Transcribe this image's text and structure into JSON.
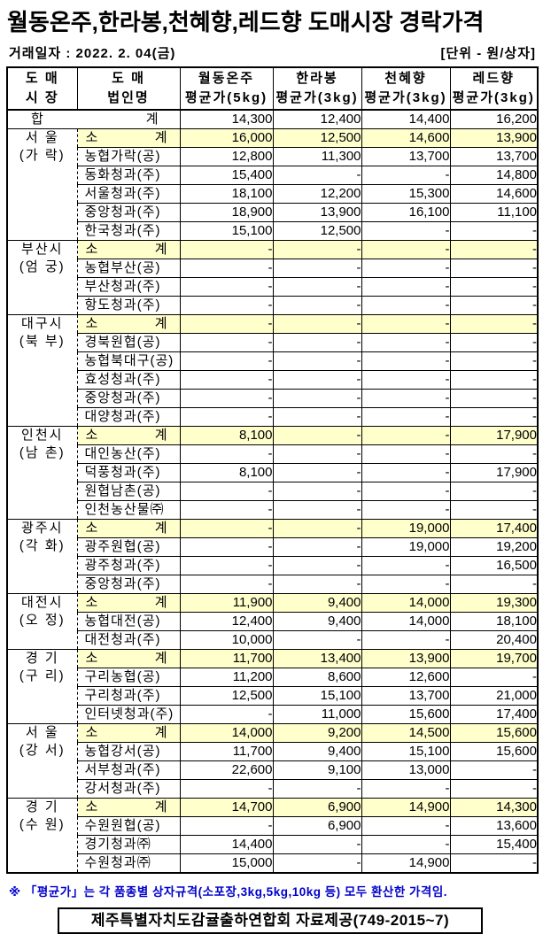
{
  "title": "월동온주,한라봉,천혜향,레드향 도매시장 경락가격",
  "meta": {
    "trade_date": "거래일자 : 2022. 2. 04(금)",
    "unit": "[단위 - 원/상자]"
  },
  "colors": {
    "highlight": "#FFFFCC",
    "footnote_blue": "#0000CC"
  },
  "table": {
    "headers": [
      {
        "line1": "도  매",
        "line2": "시  장"
      },
      {
        "line1": "도  매",
        "line2": "법인명"
      },
      {
        "line1": "월동온주",
        "line2": "평균가(5kg)"
      },
      {
        "line1": "한라봉",
        "line2": "평균가(3kg)"
      },
      {
        "line1": "천혜향",
        "line2": "평균가(3kg)"
      },
      {
        "line1": "레드향",
        "line2": "평균가(3kg)"
      }
    ],
    "total_row": {
      "label_left": "합",
      "label_right": "계",
      "values": [
        "14,300",
        "12,400",
        "14,400",
        "16,200"
      ]
    },
    "sections": [
      {
        "market_line1": "서  울",
        "market_line2": "(가  락)",
        "rows": [
          {
            "sub": true,
            "name_l": "소",
            "name_r": "계",
            "values": [
              "16,000",
              "12,500",
              "14,600",
              "13,900"
            ]
          },
          {
            "name": "농협가락(공)",
            "values": [
              "12,800",
              "11,300",
              "13,700",
              "13,700"
            ]
          },
          {
            "name": "동화청과(주)",
            "values": [
              "15,400",
              "-",
              "-",
              "14,800"
            ]
          },
          {
            "name": "서울청과(주)",
            "values": [
              "18,100",
              "12,200",
              "15,300",
              "14,600"
            ]
          },
          {
            "name": "중앙청과(주)",
            "values": [
              "18,900",
              "13,900",
              "16,100",
              "11,100"
            ]
          },
          {
            "name": "한국청과(주)",
            "values": [
              "15,100",
              "12,500",
              "-",
              "-"
            ]
          }
        ]
      },
      {
        "market_line1": "부산시",
        "market_line2": "(엄  궁)",
        "rows": [
          {
            "sub": true,
            "name_l": "소",
            "name_r": "계",
            "values": [
              "-",
              "-",
              "-",
              "-"
            ]
          },
          {
            "name": "농협부산(공)",
            "values": [
              "-",
              "-",
              "-",
              "-"
            ]
          },
          {
            "name": "부산청과(주)",
            "values": [
              "-",
              "-",
              "-",
              "-"
            ]
          },
          {
            "name": "항도청과(주)",
            "values": [
              "-",
              "-",
              "-",
              "-"
            ]
          }
        ]
      },
      {
        "market_line1": "대구시",
        "market_line2": "(북  부)",
        "rows": [
          {
            "sub": true,
            "name_l": "소",
            "name_r": "계",
            "values": [
              "-",
              "-",
              "-",
              "-"
            ]
          },
          {
            "name": "경북원협(공)",
            "values": [
              "-",
              "-",
              "-",
              "-"
            ]
          },
          {
            "name": "농협북대구(공)",
            "values": [
              "-",
              "-",
              "-",
              "-"
            ]
          },
          {
            "name": "효성청과(주)",
            "values": [
              "-",
              "-",
              "-",
              "-"
            ]
          },
          {
            "name": "중앙청과(주)",
            "values": [
              "-",
              "-",
              "-",
              "-"
            ]
          },
          {
            "name": "대양청과(주)",
            "values": [
              "-",
              "-",
              "-",
              "-"
            ]
          }
        ]
      },
      {
        "market_line1": "인천시",
        "market_line2": "(남  촌)",
        "rows": [
          {
            "sub": true,
            "name_l": "소",
            "name_r": "계",
            "values": [
              "8,100",
              "-",
              "-",
              "17,900"
            ]
          },
          {
            "name": "대인농산(주)",
            "values": [
              "-",
              "-",
              "-",
              "-"
            ]
          },
          {
            "name": "덕풍청과(주)",
            "values": [
              "8,100",
              "-",
              "-",
              "17,900"
            ]
          },
          {
            "name": "원협남촌(공)",
            "values": [
              "-",
              "-",
              "-",
              "-"
            ]
          },
          {
            "name": "인천농산물㈜",
            "values": [
              "-",
              "-",
              "-",
              "-"
            ]
          }
        ]
      },
      {
        "market_line1": "광주시",
        "market_line2": "(각  화)",
        "rows": [
          {
            "sub": true,
            "name_l": "소",
            "name_r": "계",
            "values": [
              "-",
              "-",
              "19,000",
              "17,400"
            ]
          },
          {
            "name": "광주원협(공)",
            "values": [
              "-",
              "-",
              "19,000",
              "19,200"
            ]
          },
          {
            "name": "광주청과(주)",
            "values": [
              "-",
              "-",
              "-",
              "16,500"
            ]
          },
          {
            "name": "중앙청과(주)",
            "values": [
              "-",
              "-",
              "-",
              "-"
            ]
          }
        ]
      },
      {
        "market_line1": "대전시",
        "market_line2": "(오  정)",
        "rows": [
          {
            "sub": true,
            "name_l": "소",
            "name_r": "계",
            "values": [
              "11,900",
              "9,400",
              "14,000",
              "19,300"
            ]
          },
          {
            "name": "농협대전(공)",
            "values": [
              "12,400",
              "9,400",
              "14,000",
              "18,100"
            ]
          },
          {
            "name": "대전청과(주)",
            "values": [
              "10,000",
              "-",
              "-",
              "20,400"
            ]
          }
        ]
      },
      {
        "market_line1": "경  기",
        "market_line2": "(구  리)",
        "rows": [
          {
            "sub": true,
            "name_l": "소",
            "name_r": "계",
            "values": [
              "11,700",
              "13,400",
              "13,900",
              "19,700"
            ]
          },
          {
            "name": "구리농협(공)",
            "values": [
              "11,200",
              "8,600",
              "12,600",
              "-"
            ]
          },
          {
            "name": "구리청과(주)",
            "values": [
              "12,500",
              "15,100",
              "13,700",
              "21,000"
            ]
          },
          {
            "name": "인터넷청과(주)",
            "values": [
              "-",
              "11,000",
              "15,600",
              "17,400"
            ]
          }
        ]
      },
      {
        "market_line1": "서  울",
        "market_line2": "(강  서)",
        "rows": [
          {
            "sub": true,
            "name_l": "소",
            "name_r": "계",
            "values": [
              "14,000",
              "9,200",
              "14,500",
              "15,600"
            ]
          },
          {
            "name": "농협강서(공)",
            "values": [
              "11,700",
              "9,400",
              "15,100",
              "15,600"
            ]
          },
          {
            "name": "서부청과(주)",
            "values": [
              "22,600",
              "9,100",
              "13,000",
              "-"
            ]
          },
          {
            "name": "강서청과(주)",
            "values": [
              "-",
              "-",
              "-",
              "-"
            ]
          }
        ]
      },
      {
        "market_line1": "경  기",
        "market_line2": "(수  원)",
        "rows": [
          {
            "sub": true,
            "name_l": "소",
            "name_r": "계",
            "values": [
              "14,700",
              "6,900",
              "14,900",
              "14,300"
            ]
          },
          {
            "name": "수원원협(공)",
            "values": [
              "-",
              "6,900",
              "-",
              "13,600"
            ]
          },
          {
            "name": "경기청과㈜",
            "values": [
              "14,400",
              "-",
              "-",
              "15,400"
            ]
          },
          {
            "name": "수원청과㈜",
            "values": [
              "15,000",
              "-",
              "14,900",
              "-"
            ]
          }
        ]
      }
    ]
  },
  "footnote": "※ 「평균가」는 각 품종별 상자규격(소포장,3kg,5kg,10kg 등) 모두 환산한 가격임.",
  "source": "제주특별자치도감귤출하연합회 자료제공(749-2015~7)"
}
